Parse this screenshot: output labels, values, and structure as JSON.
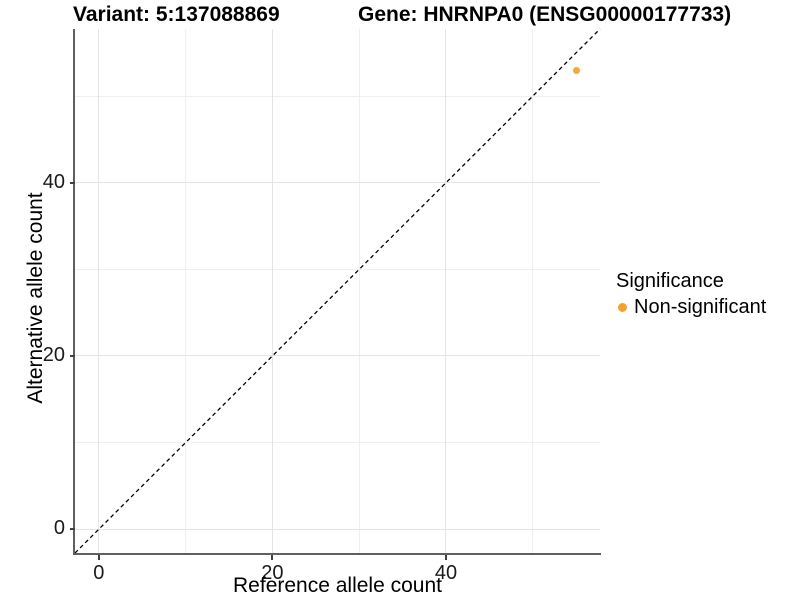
{
  "titles": {
    "variant": "Variant: 5:137088869",
    "gene": "Gene: HNRNPA0 (ENSG00000177733)"
  },
  "axes": {
    "x": {
      "label": "Reference allele count"
    },
    "y": {
      "label": "Alternative allele count"
    }
  },
  "legend": {
    "title": "Significance",
    "items": [
      {
        "label": "Non-significant",
        "color": "#F9A02B"
      }
    ]
  },
  "colors": {
    "background": "#ffffff",
    "grid_major": "#e4e4e4",
    "grid_minor": "#efefef",
    "axis_line": "#606060",
    "tick_mark": "#404040",
    "point": "#F9A02B",
    "dashed_line": "#000000"
  },
  "chart_data": {
    "type": "scatter",
    "title": "Variant: 5:137088869   Gene: HNRNPA0 (ENSG00000177733)",
    "xlabel": "Reference allele count",
    "ylabel": "Alternative allele count",
    "xlim": [
      -2.75,
      57.75
    ],
    "ylim": [
      -2.75,
      57.75
    ],
    "x_ticks": [
      0,
      20,
      40
    ],
    "y_ticks": [
      0,
      20,
      40
    ],
    "x_minor_ticks": [
      10,
      30,
      50
    ],
    "y_minor_ticks": [
      10,
      30,
      50
    ],
    "grid": true,
    "legend_position": "right",
    "series": [
      {
        "name": "Non-significant",
        "color": "#F9A02B",
        "points": [
          {
            "x": 55,
            "y": 53
          }
        ]
      }
    ],
    "reference_line": {
      "type": "identity_y_equals_x",
      "style": "dashed",
      "color": "#000000"
    }
  }
}
